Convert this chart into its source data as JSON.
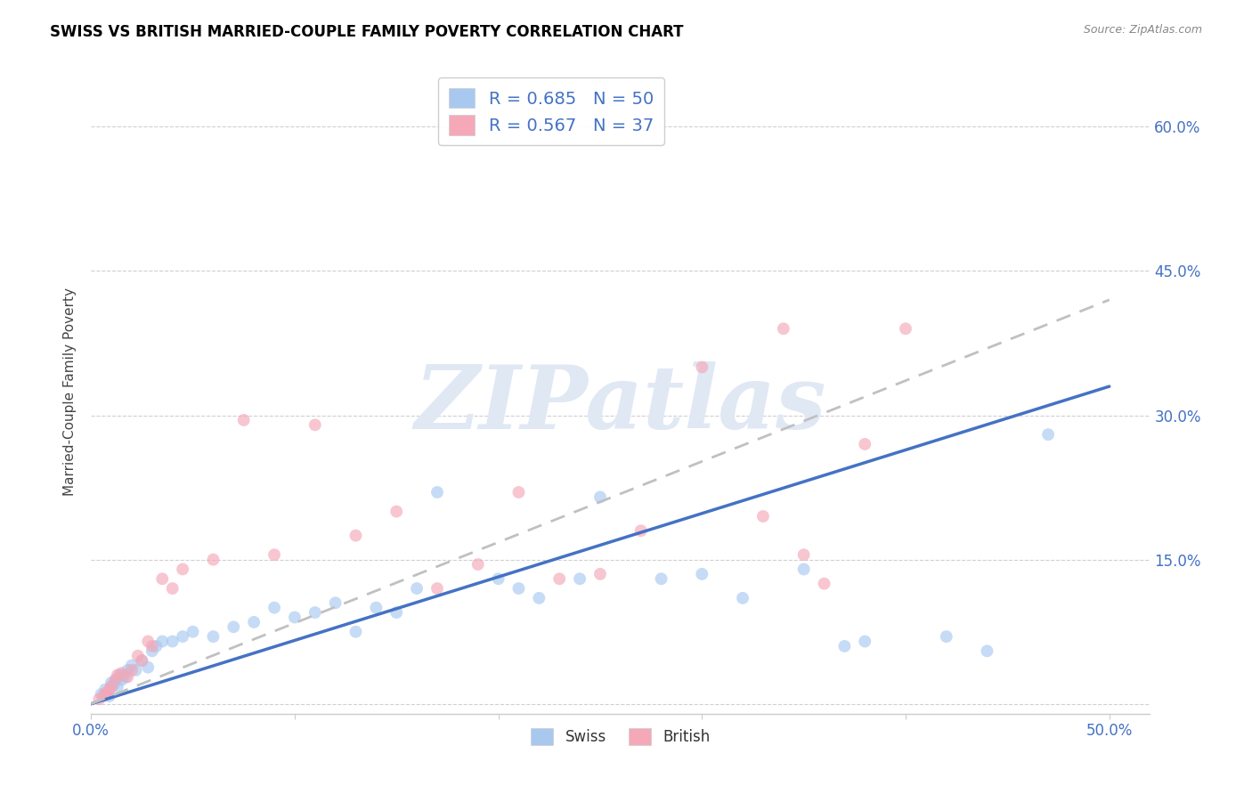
{
  "title": "SWISS VS BRITISH MARRIED-COUPLE FAMILY POVERTY CORRELATION CHART",
  "source": "Source: ZipAtlas.com",
  "ylabel": "Married-Couple Family Poverty",
  "xlim": [
    0.0,
    0.52
  ],
  "ylim": [
    -0.01,
    0.66
  ],
  "xticks": [
    0.0,
    0.1,
    0.2,
    0.3,
    0.4,
    0.5
  ],
  "yticks": [
    0.0,
    0.15,
    0.3,
    0.45,
    0.6
  ],
  "xtick_labels": [
    "0.0%",
    "",
    "",
    "",
    "",
    "50.0%"
  ],
  "right_ytick_labels": [
    "60.0%",
    "45.0%",
    "30.0%",
    "15.0%"
  ],
  "background_color": "#ffffff",
  "grid_color": "#d0d0d0",
  "swiss_color": "#a8c8f0",
  "british_color": "#f4a8b8",
  "swiss_line_color": "#4472c4",
  "british_line_color": "#c0c0c0",
  "label_color": "#4472c4",
  "swiss_R": 0.685,
  "swiss_N": 50,
  "british_R": 0.567,
  "british_N": 37,
  "swiss_scatter_x": [
    0.005,
    0.007,
    0.008,
    0.009,
    0.01,
    0.01,
    0.011,
    0.012,
    0.013,
    0.014,
    0.015,
    0.016,
    0.017,
    0.018,
    0.02,
    0.022,
    0.025,
    0.028,
    0.03,
    0.032,
    0.035,
    0.04,
    0.045,
    0.05,
    0.06,
    0.07,
    0.08,
    0.09,
    0.1,
    0.11,
    0.12,
    0.13,
    0.14,
    0.15,
    0.16,
    0.17,
    0.2,
    0.21,
    0.22,
    0.24,
    0.25,
    0.28,
    0.3,
    0.32,
    0.35,
    0.37,
    0.38,
    0.42,
    0.44,
    0.47
  ],
  "swiss_scatter_y": [
    0.01,
    0.015,
    0.012,
    0.008,
    0.018,
    0.022,
    0.02,
    0.025,
    0.018,
    0.03,
    0.025,
    0.03,
    0.028,
    0.035,
    0.04,
    0.035,
    0.045,
    0.038,
    0.055,
    0.06,
    0.065,
    0.065,
    0.07,
    0.075,
    0.07,
    0.08,
    0.085,
    0.1,
    0.09,
    0.095,
    0.105,
    0.075,
    0.1,
    0.095,
    0.12,
    0.22,
    0.13,
    0.12,
    0.11,
    0.13,
    0.215,
    0.13,
    0.135,
    0.11,
    0.14,
    0.06,
    0.065,
    0.07,
    0.055,
    0.28
  ],
  "british_scatter_x": [
    0.004,
    0.006,
    0.007,
    0.008,
    0.009,
    0.01,
    0.012,
    0.013,
    0.015,
    0.018,
    0.02,
    0.023,
    0.025,
    0.028,
    0.03,
    0.035,
    0.04,
    0.045,
    0.06,
    0.075,
    0.09,
    0.11,
    0.13,
    0.15,
    0.17,
    0.19,
    0.21,
    0.23,
    0.25,
    0.27,
    0.3,
    0.33,
    0.34,
    0.35,
    0.36,
    0.38,
    0.4
  ],
  "british_scatter_y": [
    0.005,
    0.008,
    0.01,
    0.012,
    0.015,
    0.018,
    0.025,
    0.03,
    0.032,
    0.028,
    0.035,
    0.05,
    0.045,
    0.065,
    0.06,
    0.13,
    0.12,
    0.14,
    0.15,
    0.295,
    0.155,
    0.29,
    0.175,
    0.2,
    0.12,
    0.145,
    0.22,
    0.13,
    0.135,
    0.18,
    0.35,
    0.195,
    0.39,
    0.155,
    0.125,
    0.27,
    0.39
  ],
  "swiss_line_x": [
    0.0,
    0.5
  ],
  "swiss_line_y": [
    0.0,
    0.33
  ],
  "british_line_x": [
    0.0,
    0.5
  ],
  "british_line_y": [
    0.0,
    0.42
  ],
  "watermark_text": "ZIPatlas",
  "watermark_color": "#e0e8f4",
  "marker_size": 100,
  "marker_alpha": 0.65,
  "legend_label_swiss": "Swiss",
  "legend_label_british": "British"
}
